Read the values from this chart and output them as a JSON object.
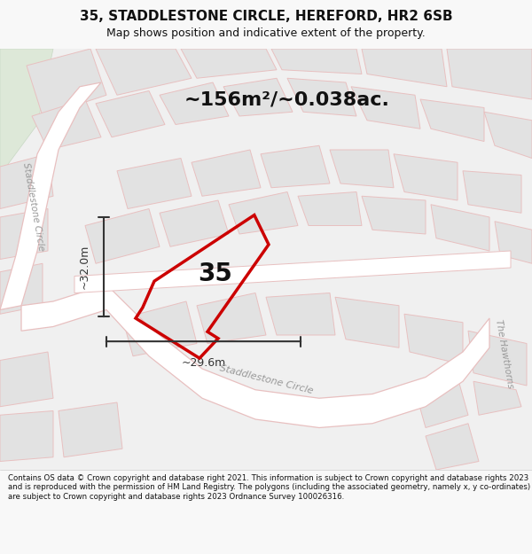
{
  "title_line1": "35, STADDLESTONE CIRCLE, HEREFORD, HR2 6SB",
  "title_line2": "Map shows position and indicative extent of the property.",
  "area_text": "~156m²/~0.038ac.",
  "label_35": "35",
  "dim_vertical": "~32.0m",
  "dim_horizontal": "~29.6m",
  "footer_text": "Contains OS data © Crown copyright and database right 2021. This information is subject to Crown copyright and database rights 2023 and is reproduced with the permission of HM Land Registry. The polygons (including the associated geometry, namely x, y co-ordinates) are subject to Crown copyright and database rights 2023 Ordnance Survey 100026316.",
  "bg_color": "#f8f8f8",
  "map_bg": "#f0f0f0",
  "road_color": "#e8c0c0",
  "road_fill": "#ffffff",
  "property_color": "#cc0000",
  "dim_color": "#333333",
  "street_label_color": "#999999",
  "footer_box_color": "#ffffff",
  "title_color": "#111111",
  "green_color": "#dde8d8",
  "block_color": "#e2e2e2"
}
